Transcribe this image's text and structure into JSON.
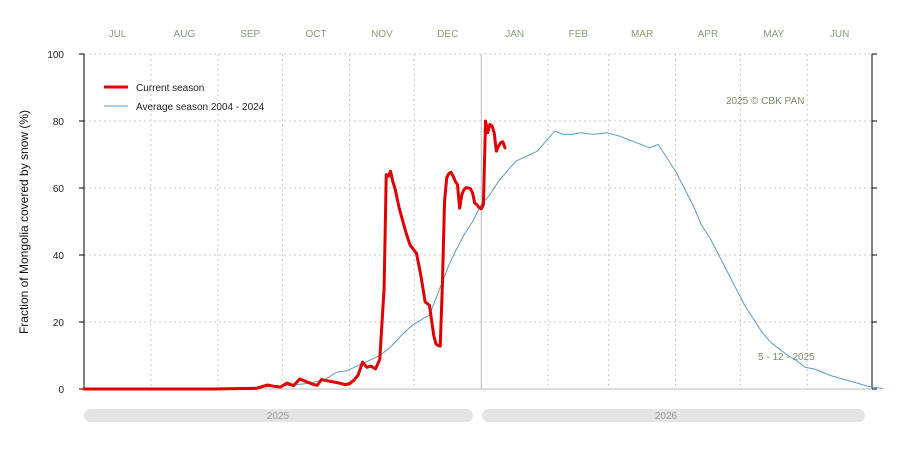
{
  "chart_data": {
    "type": "line",
    "ylabel": "Fraction of  Mongolia  covered by snow (%)",
    "ylim": [
      0,
      100
    ],
    "yticks": [
      "0",
      "20",
      "40",
      "60",
      "80",
      "100"
    ],
    "months": [
      "JUL",
      "AUG",
      "SEP",
      "OCT",
      "NOV",
      "DEC",
      "JAN",
      "FEB",
      "MAR",
      "APR",
      "MAY",
      "JUN"
    ],
    "years": [
      "2025",
      "2026"
    ],
    "year_start_day": 184,
    "total_days": 365,
    "copyright": "2025  © CBK PAN",
    "date_label": "5 - 12 - 2025",
    "legend_position": "top-left",
    "colors": {
      "current": "#e00000",
      "average": "#5b9bc8",
      "grid": "#c8c8c8"
    },
    "series": [
      {
        "name": "Current season",
        "color": "#e00000",
        "points": [
          [
            0,
            0
          ],
          [
            30,
            0
          ],
          [
            60,
            0
          ],
          [
            70,
            0.1
          ],
          [
            80,
            0.2
          ],
          [
            85,
            1.2
          ],
          [
            88,
            0.8
          ],
          [
            91,
            0.6
          ],
          [
            94,
            1.8
          ],
          [
            97,
            1
          ],
          [
            100,
            3
          ],
          [
            103,
            2.2
          ],
          [
            106,
            1.4
          ],
          [
            108,
            1.1
          ],
          [
            110,
            2.8
          ],
          [
            114,
            2.3
          ],
          [
            118,
            1.8
          ],
          [
            121,
            1.3
          ],
          [
            123,
            1.6
          ],
          [
            125,
            2.6
          ],
          [
            127,
            4.2
          ],
          [
            129,
            8
          ],
          [
            131,
            6.5
          ],
          [
            133,
            6.8
          ],
          [
            135,
            6
          ],
          [
            137,
            8.8
          ],
          [
            139,
            30
          ],
          [
            140,
            64
          ],
          [
            141,
            63.5
          ],
          [
            142,
            65
          ],
          [
            143,
            62
          ],
          [
            144,
            60
          ],
          [
            146,
            54
          ],
          [
            149,
            47
          ],
          [
            151,
            43
          ],
          [
            154,
            40.5
          ],
          [
            156,
            34
          ],
          [
            158,
            26
          ],
          [
            160,
            25
          ],
          [
            162,
            16
          ],
          [
            163,
            13.5
          ],
          [
            164,
            13
          ],
          [
            165,
            12.8
          ],
          [
            166,
            31
          ],
          [
            167,
            56
          ],
          [
            168,
            63
          ],
          [
            169,
            64.3
          ],
          [
            170,
            64.7
          ],
          [
            171,
            63.5
          ],
          [
            172,
            62
          ],
          [
            173,
            61
          ],
          [
            174,
            54
          ],
          [
            175,
            58
          ],
          [
            176,
            59.5
          ],
          [
            177,
            60.1
          ],
          [
            178,
            60
          ],
          [
            179,
            59.8
          ],
          [
            180,
            58.5
          ],
          [
            181,
            55.5
          ],
          [
            182,
            55
          ],
          [
            183,
            54.2
          ],
          [
            184,
            53.8
          ],
          [
            185,
            55
          ],
          [
            186,
            80
          ],
          [
            187,
            76.5
          ],
          [
            188,
            79
          ],
          [
            189,
            78.5
          ],
          [
            190,
            76.5
          ],
          [
            191,
            71
          ],
          [
            192,
            72.5
          ],
          [
            193,
            73.5
          ],
          [
            194,
            73.8
          ],
          [
            195,
            72
          ]
        ]
      },
      {
        "name": "Average season 2004 - 2024",
        "color": "#5b9bc8",
        "points": [
          [
            0,
            0
          ],
          [
            40,
            0
          ],
          [
            60,
            0.2
          ],
          [
            80,
            0.5
          ],
          [
            95,
            1
          ],
          [
            105,
            1.8
          ],
          [
            112,
            3
          ],
          [
            117,
            5
          ],
          [
            122,
            5.5
          ],
          [
            127,
            7
          ],
          [
            132,
            8.5
          ],
          [
            137,
            10
          ],
          [
            142,
            12.5
          ],
          [
            147,
            16
          ],
          [
            152,
            19
          ],
          [
            157,
            21
          ],
          [
            160,
            22
          ],
          [
            163,
            27
          ],
          [
            166,
            32
          ],
          [
            169,
            37
          ],
          [
            172,
            41
          ],
          [
            176,
            46
          ],
          [
            180,
            50
          ],
          [
            184,
            55
          ],
          [
            188,
            58
          ],
          [
            192,
            62
          ],
          [
            196,
            65
          ],
          [
            200,
            68
          ],
          [
            205,
            69.5
          ],
          [
            210,
            71
          ],
          [
            214,
            74
          ],
          [
            218,
            77
          ],
          [
            222,
            76
          ],
          [
            226,
            76
          ],
          [
            230,
            76.5
          ],
          [
            236,
            76
          ],
          [
            242,
            76.5
          ],
          [
            248,
            75.5
          ],
          [
            254,
            74
          ],
          [
            258,
            73
          ],
          [
            262,
            72
          ],
          [
            266,
            73
          ],
          [
            270,
            69
          ],
          [
            274,
            65
          ],
          [
            278,
            60
          ],
          [
            282,
            55
          ],
          [
            286,
            49
          ],
          [
            290,
            45
          ],
          [
            294,
            40
          ],
          [
            298,
            35
          ],
          [
            302,
            30
          ],
          [
            306,
            25
          ],
          [
            310,
            21
          ],
          [
            314,
            17
          ],
          [
            318,
            14
          ],
          [
            322,
            12
          ],
          [
            326,
            10
          ],
          [
            330,
            8.5
          ],
          [
            334,
            6.5
          ],
          [
            338,
            6
          ],
          [
            342,
            5
          ],
          [
            346,
            4
          ],
          [
            350,
            3.2
          ],
          [
            354,
            2.5
          ],
          [
            358,
            1.8
          ],
          [
            362,
            1
          ],
          [
            366,
            0.5
          ],
          [
            370,
            0.2
          ]
        ]
      }
    ]
  }
}
